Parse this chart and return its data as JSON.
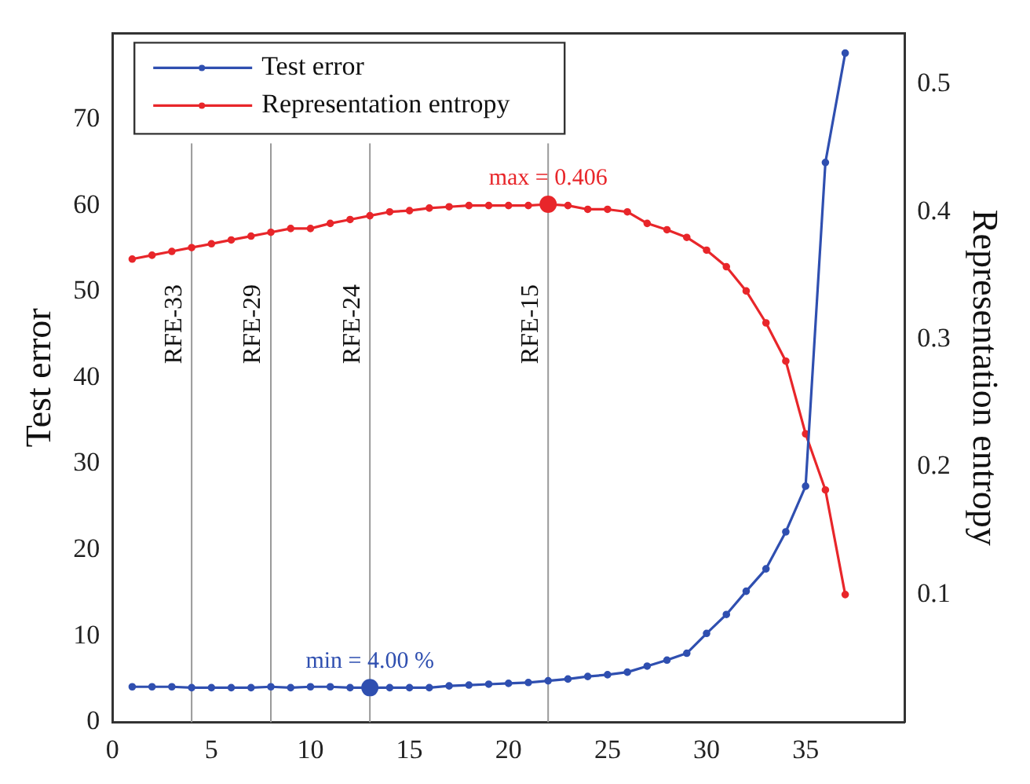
{
  "chart_data": {
    "type": "line",
    "xlabel": null,
    "ylabel": "Test error",
    "y2label": "Representation entropy",
    "x": [
      1,
      2,
      3,
      4,
      5,
      6,
      7,
      8,
      9,
      10,
      11,
      12,
      13,
      14,
      15,
      16,
      17,
      18,
      19,
      20,
      21,
      22,
      23,
      24,
      25,
      26,
      27,
      28,
      29,
      30,
      31,
      32,
      33,
      34,
      35,
      36,
      37
    ],
    "series": [
      {
        "name": "Test error",
        "color": "#2f4fb0",
        "values": [
          4.1,
          4.1,
          4.1,
          4.0,
          4.0,
          4.0,
          4.0,
          4.1,
          4.0,
          4.1,
          4.1,
          4.0,
          4.0,
          4.0,
          4.0,
          4.0,
          4.2,
          4.3,
          4.4,
          4.5,
          4.6,
          4.8,
          5.0,
          5.3,
          5.5,
          5.8,
          6.5,
          7.2,
          8.0,
          10.3,
          12.5,
          15.2,
          17.8,
          22.1,
          27.4,
          65,
          77.7
        ]
      },
      {
        "name": "Representation entropy",
        "color": "#e8262a",
        "axis": "y2",
        "values": [
          0.363,
          0.366,
          0.369,
          0.372,
          0.375,
          0.378,
          0.381,
          0.384,
          0.387,
          0.387,
          0.391,
          0.394,
          0.397,
          0.4,
          0.401,
          0.403,
          0.404,
          0.405,
          0.405,
          0.405,
          0.405,
          0.406,
          0.405,
          0.402,
          0.402,
          0.4,
          0.391,
          0.386,
          0.38,
          0.37,
          0.357,
          0.338,
          0.313,
          0.283,
          0.226,
          0.182,
          0.1
        ]
      }
    ],
    "xlim": [
      0,
      40
    ],
    "xticks": [
      0,
      5,
      10,
      15,
      20,
      25,
      30,
      35
    ],
    "ylim": [
      0,
      80
    ],
    "yticks": [
      0,
      10,
      20,
      30,
      40,
      50,
      60,
      70
    ],
    "y2lim": [
      0,
      0.54
    ],
    "y2ticks": [
      0.1,
      0.2,
      0.3,
      0.4,
      0.5
    ],
    "ref_lines": [
      {
        "axis": "x",
        "value": 4,
        "label": "RFE-33",
        "color": "#999999"
      },
      {
        "axis": "x",
        "value": 8,
        "label": "RFE-29",
        "color": "#999999"
      },
      {
        "axis": "x",
        "value": 13,
        "label": "RFE-24",
        "color": "#999999"
      },
      {
        "axis": "x",
        "value": 22,
        "label": "RFE-15",
        "color": "#999999"
      }
    ],
    "annotations": [
      "max = 0.406",
      {
        "text": "min = 4.00 %",
        "x": 13,
        "y": 4.0
      }
    ],
    "marker": "circle",
    "line_style": "solid",
    "grid": false,
    "legend": "top left"
  }
}
